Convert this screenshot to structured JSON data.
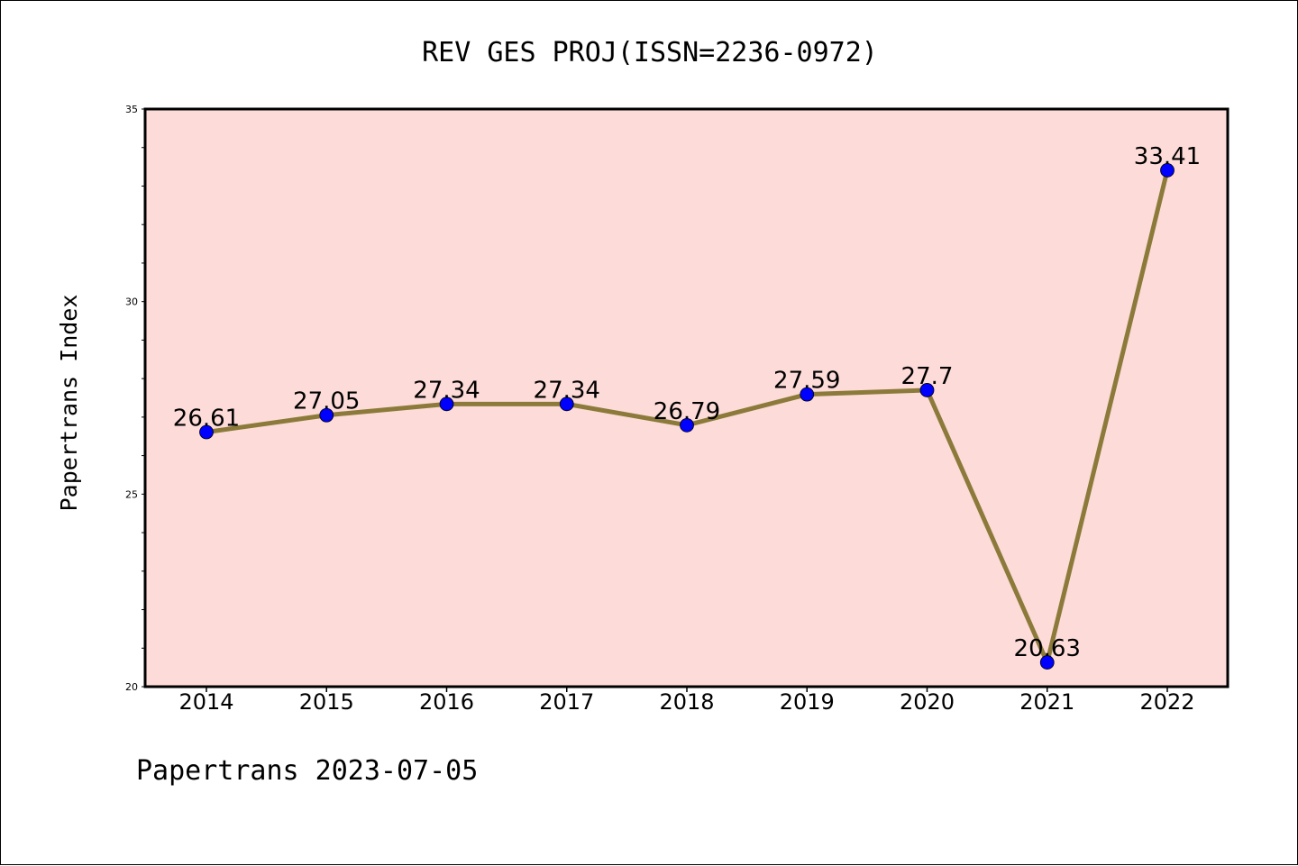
{
  "chart_data": {
    "type": "line",
    "title": "REV GES PROJ(ISSN=2236-0972)",
    "ylabel": "Papertrans Index",
    "xlabel": "",
    "footer": "Papertrans 2023-07-05",
    "categories": [
      "2014",
      "2015",
      "2016",
      "2017",
      "2018",
      "2019",
      "2020",
      "2021",
      "2022"
    ],
    "series": [
      {
        "values": [
          26.61,
          27.05,
          27.34,
          27.34,
          26.79,
          27.59,
          27.7,
          20.63,
          33.41
        ],
        "labels": [
          "26.61",
          "27.05",
          "27.34",
          "27.34",
          "26.79",
          "27.59",
          "27.7",
          "20.63",
          "33.41"
        ]
      }
    ],
    "ylim": [
      20,
      35
    ],
    "yticks": [
      "20",
      "25",
      "30",
      "35"
    ],
    "grid": false,
    "legend": "none",
    "colors": {
      "plot_background": "#fddbd8",
      "line": "#8b7a3a",
      "marker": "#0000ff"
    }
  }
}
